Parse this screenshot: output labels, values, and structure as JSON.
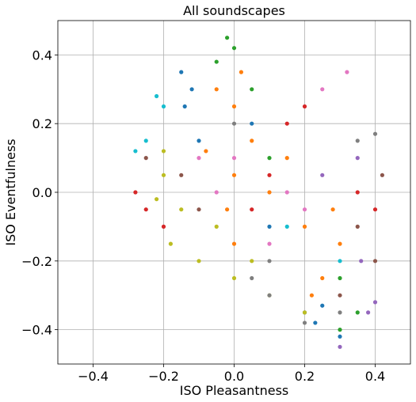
{
  "chart_data": {
    "type": "scatter",
    "title": "All soundscapes",
    "xlabel": "ISO Pleasantness",
    "ylabel": "ISO Eventfulness",
    "xlim": [
      -0.5,
      0.5
    ],
    "ylim": [
      -0.5,
      0.5
    ],
    "xticks": [
      -0.4,
      -0.2,
      0.0,
      0.2,
      0.4
    ],
    "yticks": [
      -0.4,
      -0.2,
      0.0,
      0.2,
      0.4
    ],
    "xtick_labels": [
      "−0.4",
      "−0.2",
      "0.0",
      "0.2",
      "0.4"
    ],
    "ytick_labels": [
      "−0.4",
      "−0.2",
      "0.0",
      "0.2",
      "0.4"
    ],
    "grid": true,
    "legend": "none",
    "series": [
      {
        "color": "#ff7f0e",
        "points": [
          [
            0.0,
            0.25
          ],
          [
            0.0,
            0.05
          ],
          [
            0.02,
            0.35
          ],
          [
            -0.02,
            -0.05
          ],
          [
            0.05,
            0.15
          ],
          [
            0.2,
            -0.1
          ],
          [
            0.25,
            -0.25
          ],
          [
            0.1,
            0.0
          ],
          [
            -0.05,
            0.3
          ],
          [
            0.3,
            -0.15
          ],
          [
            0.15,
            0.1
          ],
          [
            0.28,
            -0.05
          ],
          [
            0.0,
            -0.15
          ],
          [
            -0.08,
            0.12
          ],
          [
            0.22,
            -0.3
          ]
        ]
      },
      {
        "color": "#1f77b4",
        "points": [
          [
            -0.15,
            0.35
          ],
          [
            -0.14,
            0.25
          ],
          [
            0.2,
            -0.35
          ],
          [
            0.25,
            -0.33
          ],
          [
            0.3,
            -0.42
          ],
          [
            0.1,
            -0.1
          ],
          [
            0.05,
            0.2
          ],
          [
            -0.1,
            0.15
          ],
          [
            0.23,
            -0.38
          ],
          [
            -0.12,
            0.3
          ]
        ]
      },
      {
        "color": "#bcbd22",
        "points": [
          [
            -0.2,
            0.05
          ],
          [
            -0.18,
            -0.15
          ],
          [
            -0.1,
            -0.2
          ],
          [
            0.0,
            -0.25
          ],
          [
            0.1,
            -0.3
          ],
          [
            -0.2,
            0.12
          ],
          [
            -0.15,
            -0.05
          ],
          [
            0.05,
            -0.2
          ],
          [
            -0.22,
            -0.02
          ],
          [
            0.2,
            -0.35
          ],
          [
            -0.05,
            -0.1
          ]
        ]
      },
      {
        "color": "#2ca02c",
        "points": [
          [
            0.0,
            0.42
          ],
          [
            -0.05,
            0.38
          ],
          [
            0.05,
            0.3
          ],
          [
            0.3,
            -0.4
          ],
          [
            0.35,
            -0.35
          ],
          [
            0.1,
            0.1
          ],
          [
            0.3,
            -0.25
          ],
          [
            -0.02,
            0.45
          ]
        ]
      },
      {
        "color": "#d62728",
        "points": [
          [
            -0.28,
            0.0
          ],
          [
            -0.25,
            -0.05
          ],
          [
            0.15,
            0.2
          ],
          [
            0.2,
            0.25
          ],
          [
            0.05,
            -0.05
          ],
          [
            -0.2,
            -0.1
          ],
          [
            0.1,
            0.05
          ],
          [
            0.4,
            -0.05
          ],
          [
            0.35,
            0.0
          ]
        ]
      },
      {
        "color": "#17becf",
        "points": [
          [
            -0.22,
            0.28
          ],
          [
            -0.25,
            0.15
          ],
          [
            -0.2,
            0.25
          ],
          [
            0.3,
            -0.2
          ],
          [
            0.15,
            -0.1
          ],
          [
            -0.28,
            0.12
          ]
        ]
      },
      {
        "color": "#e377c2",
        "points": [
          [
            -0.1,
            0.1
          ],
          [
            -0.05,
            0.0
          ],
          [
            0.0,
            0.1
          ],
          [
            0.2,
            -0.05
          ],
          [
            0.25,
            0.3
          ],
          [
            0.15,
            0.0
          ],
          [
            0.32,
            0.35
          ],
          [
            0.1,
            -0.15
          ]
        ]
      },
      {
        "color": "#8c564b",
        "points": [
          [
            -0.25,
            0.1
          ],
          [
            -0.15,
            0.05
          ],
          [
            0.35,
            -0.1
          ],
          [
            0.4,
            -0.2
          ],
          [
            0.3,
            -0.3
          ],
          [
            0.42,
            0.05
          ],
          [
            -0.1,
            -0.05
          ]
        ]
      },
      {
        "color": "#7f7f7f",
        "points": [
          [
            0.05,
            -0.25
          ],
          [
            0.1,
            -0.3
          ],
          [
            0.2,
            -0.38
          ],
          [
            0.3,
            -0.35
          ],
          [
            0.35,
            0.15
          ],
          [
            0.4,
            0.17
          ],
          [
            0.0,
            0.2
          ],
          [
            0.1,
            -0.2
          ]
        ]
      },
      {
        "color": "#9467bd",
        "points": [
          [
            0.38,
            -0.35
          ],
          [
            0.4,
            -0.32
          ],
          [
            0.35,
            0.1
          ],
          [
            0.3,
            -0.45
          ],
          [
            0.36,
            -0.2
          ],
          [
            0.25,
            0.05
          ]
        ]
      }
    ]
  }
}
